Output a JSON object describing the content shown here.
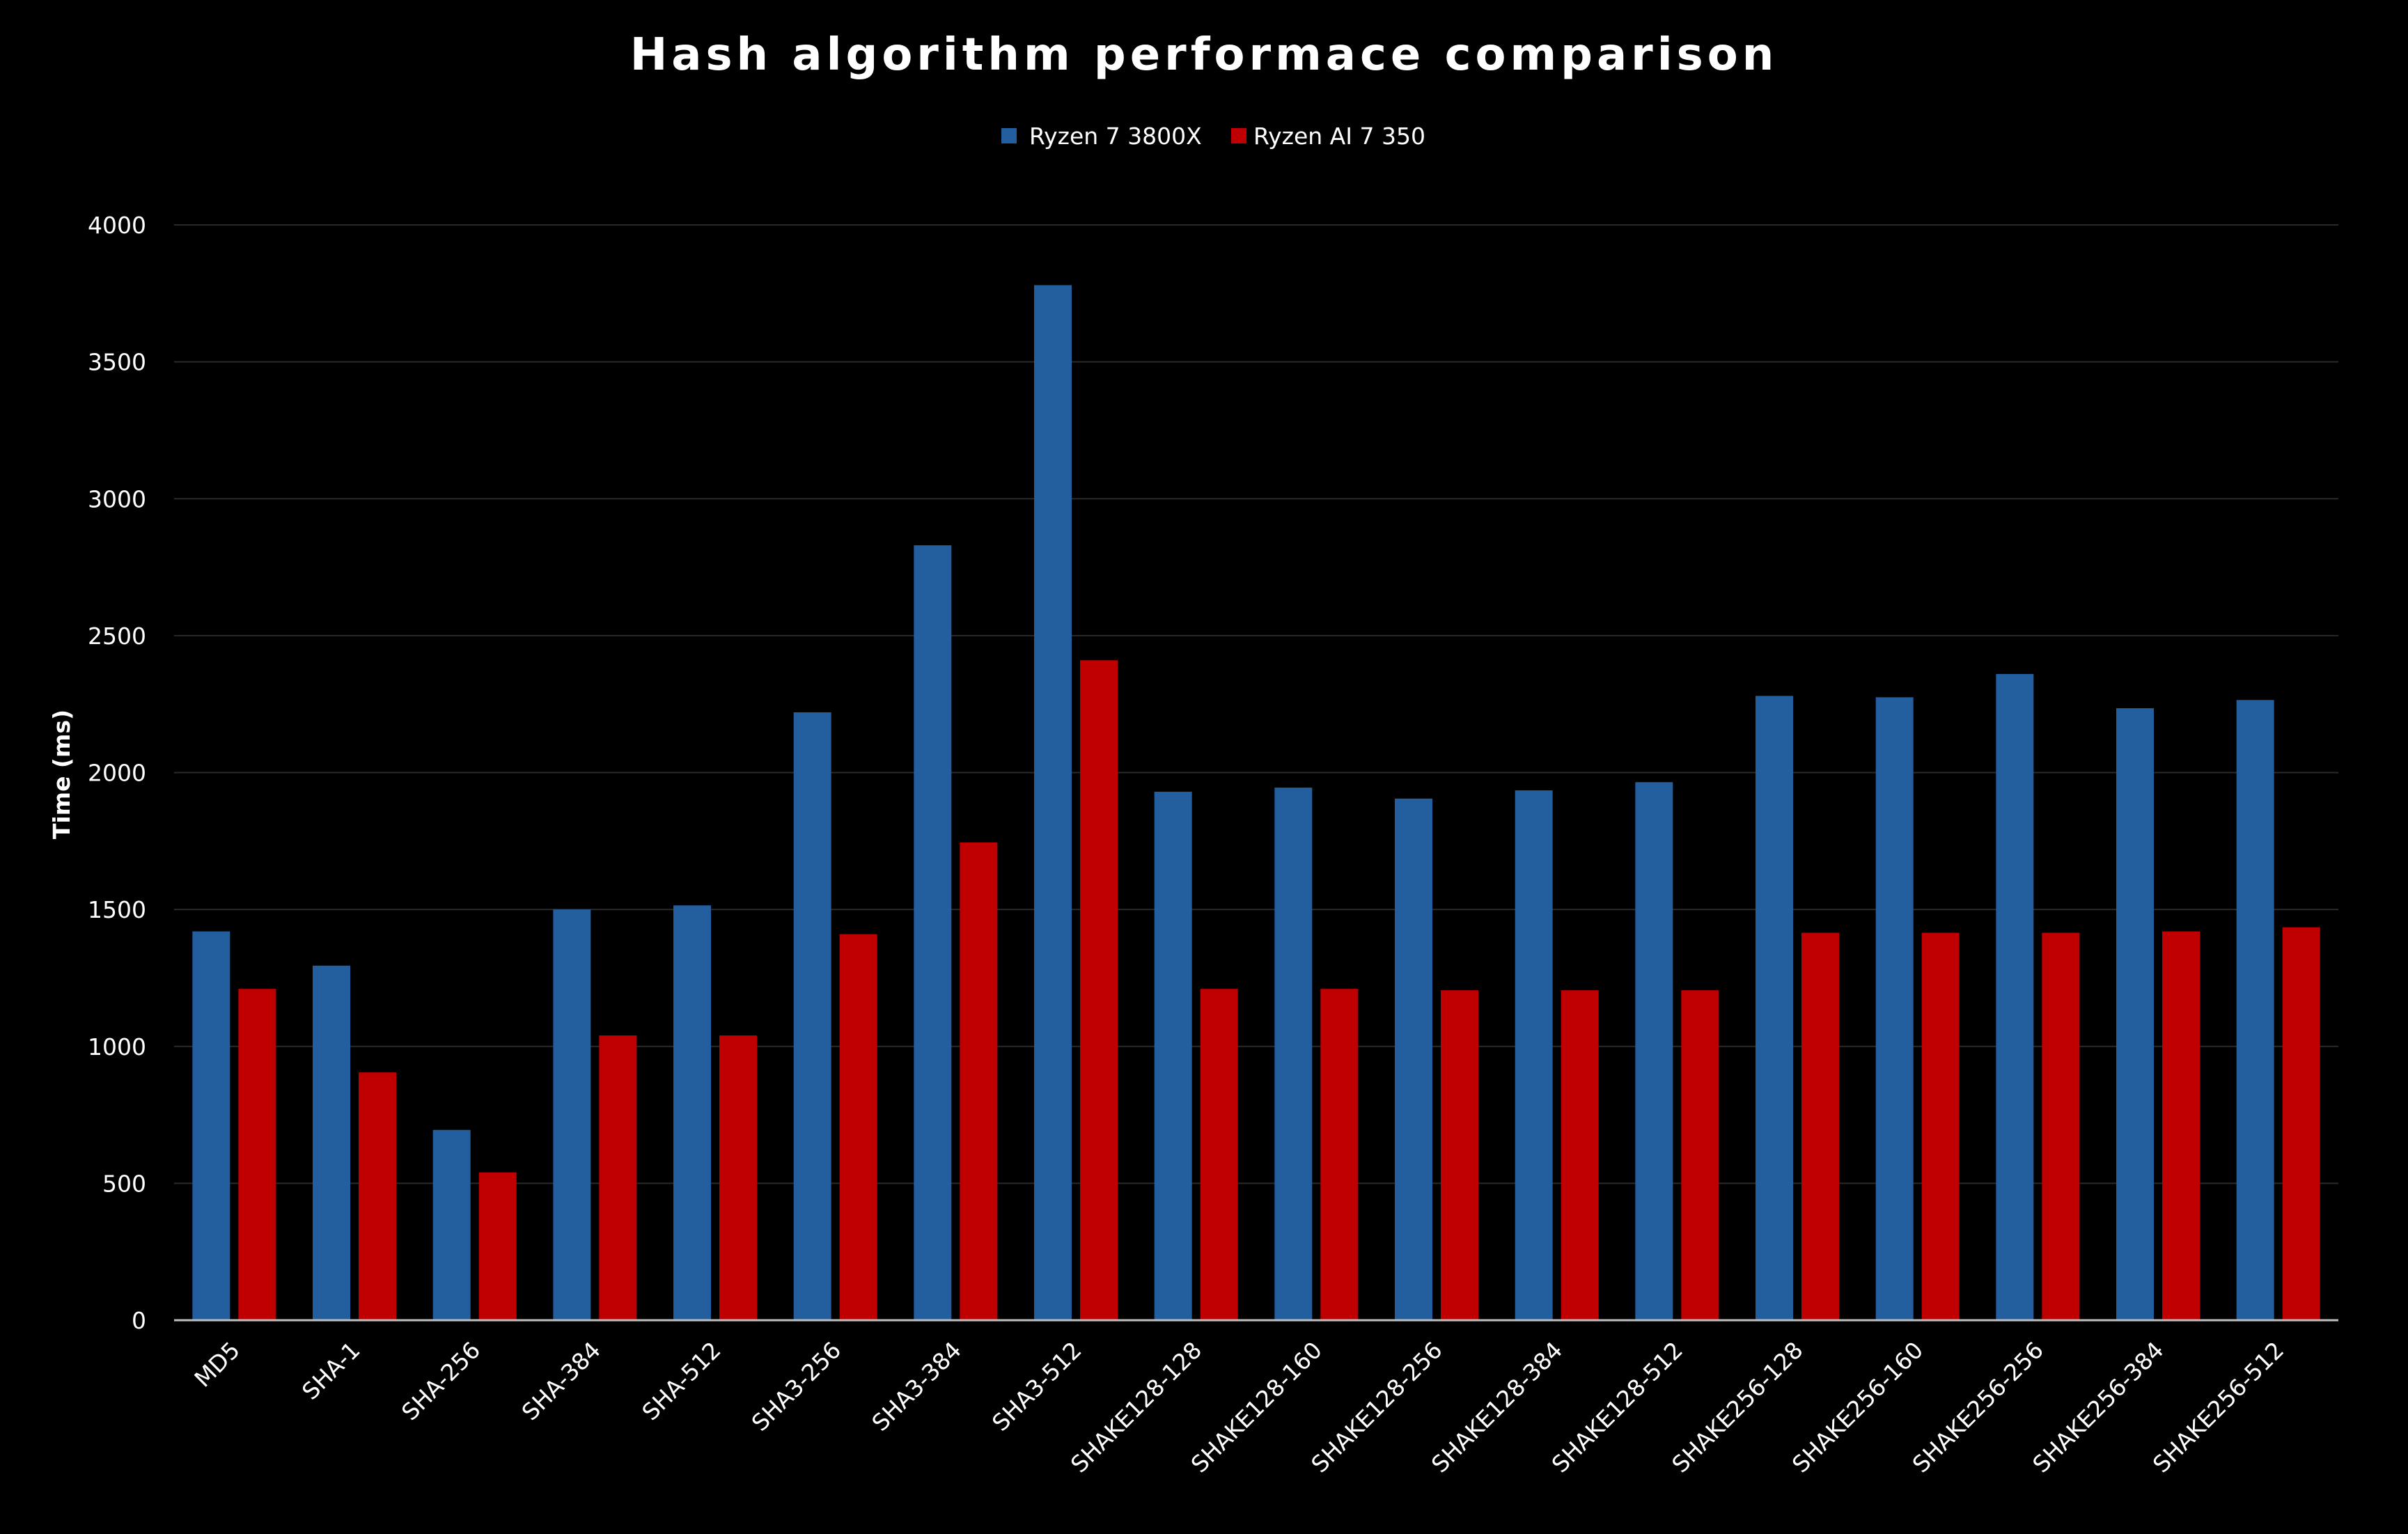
{
  "chart_data": {
    "type": "bar",
    "title": "Hash algorithm performace comparison",
    "xlabel": "",
    "ylabel": "Time (ms)",
    "ylim": [
      0,
      4000
    ],
    "yticks": [
      "0",
      "500",
      "1000",
      "1500",
      "2000",
      "2500",
      "3000",
      "3500",
      "4000"
    ],
    "grid": true,
    "legend_position": "top-center",
    "categories": [
      "MD5",
      "SHA-1",
      "SHA-256",
      "SHA-384",
      "SHA-512",
      "SHA3-256",
      "SHA3-384",
      "SHA3-512",
      "SHAKE128-128",
      "SHAKE128-160",
      "SHAKE128-256",
      "SHAKE128-384",
      "SHAKE128-512",
      "SHAKE256-128",
      "SHAKE256-160",
      "SHAKE256-256",
      "SHAKE256-384",
      "SHAKE256-512"
    ],
    "series": [
      {
        "name": "Ryzen 7 3800X",
        "color": "#235E9F",
        "values": [
          1420,
          1295,
          695,
          1500,
          1515,
          2220,
          2830,
          3780,
          1930,
          1945,
          1905,
          1935,
          1965,
          2280,
          2275,
          2360,
          2235,
          2265
        ]
      },
      {
        "name": "Ryzen AI 7 350",
        "color": "#C00000",
        "values": [
          1210,
          905,
          540,
          1040,
          1040,
          1410,
          1745,
          2410,
          1210,
          1210,
          1205,
          1205,
          1205,
          1415,
          1415,
          1415,
          1420,
          1435
        ]
      }
    ]
  }
}
